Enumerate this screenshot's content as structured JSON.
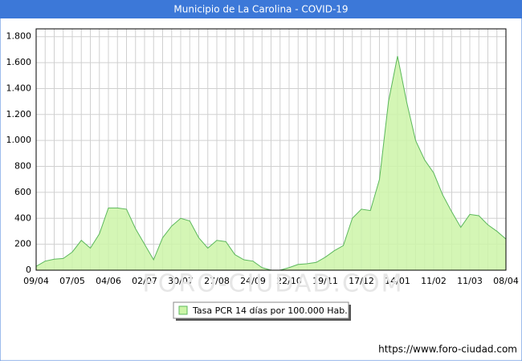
{
  "chart_data": {
    "type": "area",
    "title": "Municipio de La Carolina - COVID-19",
    "categories": [
      "09/04",
      null,
      null,
      null,
      "07/05",
      null,
      null,
      null,
      "04/06",
      null,
      null,
      null,
      "02/07",
      null,
      null,
      null,
      "30/07",
      null,
      null,
      null,
      "27/08",
      null,
      null,
      null,
      "24/09",
      null,
      null,
      null,
      "22/10",
      null,
      null,
      null,
      "19/11",
      null,
      null,
      null,
      "17/12",
      null,
      null,
      null,
      "14/01",
      null,
      null,
      null,
      "11/02",
      null,
      null,
      null,
      "11/03",
      null,
      null,
      null,
      "08/04"
    ],
    "series": [
      {
        "name": "Tasa PCR 14 días por 100.000 Hab.",
        "color": "#5cb85c",
        "values": [
          30,
          70,
          85,
          90,
          140,
          230,
          170,
          280,
          480,
          480,
          470,
          320,
          200,
          80,
          250,
          340,
          400,
          380,
          250,
          170,
          230,
          220,
          120,
          80,
          70,
          20,
          0,
          0,
          20,
          45,
          50,
          60,
          100,
          150,
          190,
          400,
          470,
          460,
          700,
          1300,
          1650,
          1300,
          1000,
          850,
          750,
          580,
          450,
          330,
          430,
          420,
          350,
          300,
          240
        ]
      }
    ],
    "ylim": [
      0,
      1860
    ],
    "yticks": [
      0,
      200,
      400,
      600,
      800,
      {
        "value": 1000,
        "label": "1.000"
      },
      {
        "value": 1200,
        "label": "1.200"
      },
      {
        "value": 1400,
        "label": "1.400"
      },
      {
        "value": 1600,
        "label": "1.600"
      },
      {
        "value": 1800,
        "label": "1.800"
      }
    ],
    "grid": true,
    "watermark": "FORO-CIUDAD.COM",
    "source": "https://www.foro-ciudad.com"
  }
}
